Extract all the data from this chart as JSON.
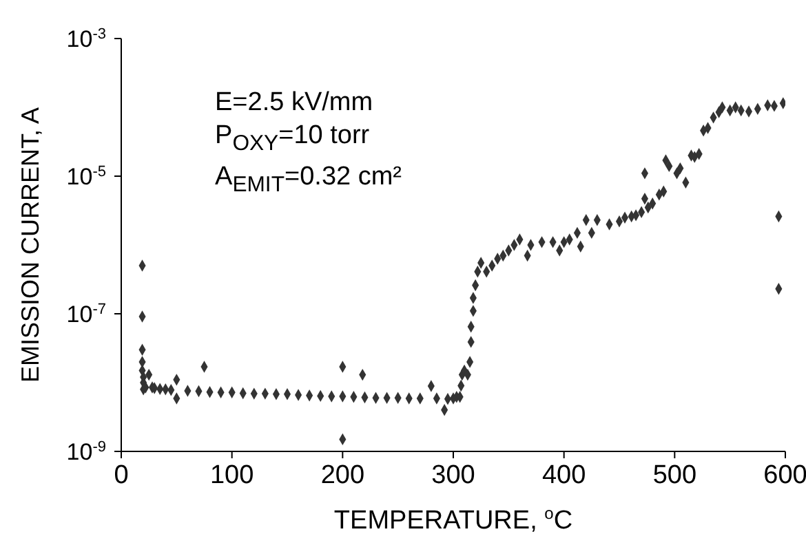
{
  "chart_data": {
    "type": "scatter",
    "xlabel": "TEMPERATURE, $^{o}$C",
    "ylabel": "EMISSION CURRENT, A",
    "log": "y",
    "marker": "diamond",
    "annotations": [
      "E=2.5 kV/mm",
      "P$_{OXY}$=10 torr",
      "A$_{EMIT}$=0.32 cm²"
    ],
    "xlim": [
      0,
      600
    ],
    "xticks": [
      0,
      100,
      200,
      300,
      400,
      500,
      600
    ],
    "ylim": [
      1e-09,
      0.001
    ],
    "yticks": [
      {
        "value": 1e-09,
        "label": "10$^{-9}$"
      },
      {
        "value": 1e-07,
        "label": "10$^{-7}$"
      },
      {
        "value": 1e-05,
        "label": "10$^{-5}$"
      },
      {
        "value": 0.001,
        "label": "10$^{-3}$"
      }
    ],
    "series": [
      {
        "color": "#333333",
        "x": [
          19,
          19,
          19,
          19,
          19,
          20,
          20,
          20,
          22,
          25,
          28,
          30,
          35,
          40,
          45,
          50,
          50,
          60,
          70,
          75,
          80,
          90,
          100,
          110,
          120,
          130,
          140,
          150,
          160,
          170,
          180,
          190,
          200,
          200,
          200,
          210,
          218,
          220,
          230,
          240,
          250,
          260,
          270,
          280,
          285,
          292,
          295,
          300,
          303,
          306,
          307,
          308,
          310,
          313,
          315,
          316,
          316,
          318,
          318,
          320,
          322,
          325,
          330,
          335,
          340,
          345,
          350,
          355,
          360,
          367,
          370,
          380,
          390,
          396,
          400,
          405,
          412,
          415,
          420,
          425,
          430,
          441,
          450,
          455,
          461,
          465,
          470,
          473,
          473,
          476,
          480,
          486,
          490,
          492,
          495,
          502,
          505,
          510,
          515,
          518,
          522,
          526,
          530,
          535,
          540,
          543,
          550,
          555,
          560,
          567,
          575,
          584,
          590,
          594,
          594,
          598
        ],
        "values": [
          5e-07,
          9.1e-08,
          3e-08,
          2e-08,
          1.5e-08,
          1.2e-08,
          1e-08,
          8e-09,
          8.5e-09,
          1.3e-08,
          8.5e-09,
          8.3e-09,
          8.1e-09,
          8e-09,
          7.8e-09,
          1.1e-08,
          5.9e-09,
          7.6e-09,
          7.5e-09,
          1.7e-08,
          7.3e-09,
          7.2e-09,
          7.2e-09,
          7e-09,
          6.9e-09,
          6.9e-09,
          6.8e-09,
          6.8e-09,
          6.6e-09,
          6.5e-09,
          6.4e-09,
          6.3e-09,
          1.7e-08,
          6.3e-09,
          1.5e-09,
          6.2e-09,
          1.3e-08,
          6.1e-09,
          6e-09,
          6e-09,
          6e-09,
          5.9e-09,
          5.9e-09,
          8.9e-09,
          5.9e-09,
          4e-09,
          5.8e-09,
          5.9e-09,
          6.2e-09,
          6.2e-09,
          9e-09,
          1.3e-08,
          1.5e-08,
          1.3e-08,
          2e-08,
          3.9e-08,
          6.5e-08,
          1.1e-07,
          1.7e-07,
          2.6e-07,
          4.1e-07,
          5.5e-07,
          4.1e-07,
          5e-07,
          6.3e-07,
          7e-07,
          8.3e-07,
          1e-06,
          1.2e-06,
          7e-07,
          1e-06,
          1.1e-06,
          1.1e-06,
          8.3e-07,
          1.1e-06,
          1.2e-06,
          1.5e-06,
          9.5e-07,
          2.3e-06,
          1.5e-06,
          2.3e-06,
          2e-06,
          2.2e-06,
          2.5e-06,
          2.6e-06,
          2.7e-06,
          3e-06,
          4.7e-06,
          1.1e-05,
          3.5e-06,
          4e-06,
          5.4e-06,
          6e-06,
          1.7e-05,
          1.4e-05,
          1.1e-05,
          1.3e-05,
          8.1e-06,
          2e-05,
          1.9e-05,
          2.1e-05,
          4.6e-05,
          5e-05,
          7.1e-05,
          8.5e-05,
          0.0001,
          9e-05,
          0.0001,
          9e-05,
          8.7e-05,
          9.5e-05,
          0.000107,
          0.000105,
          2.6e-06,
          2.3e-07,
          0.000115
        ]
      }
    ]
  }
}
